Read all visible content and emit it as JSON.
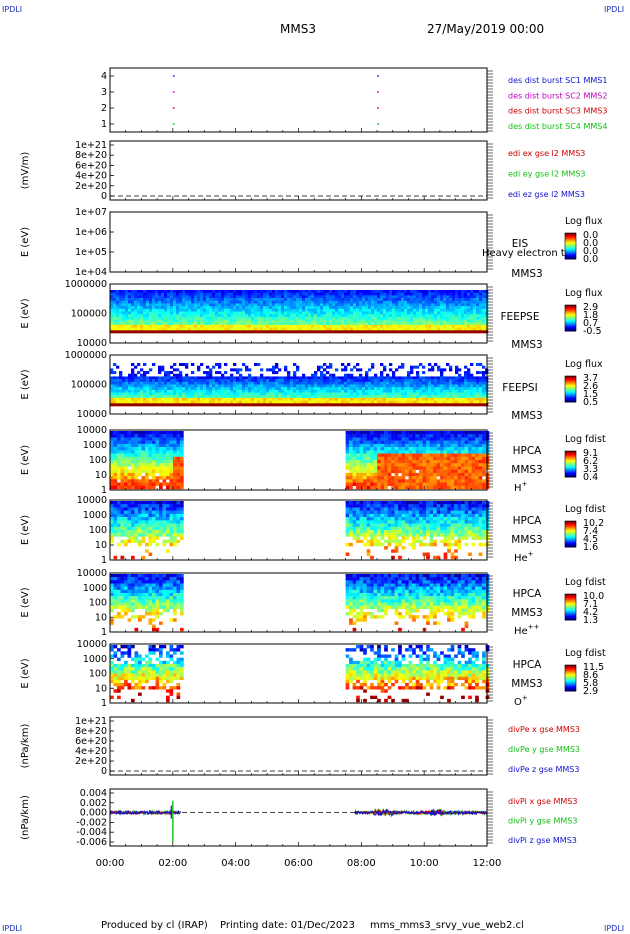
{
  "header": {
    "corner_tl": "IPDLI",
    "corner_tr": "IPDLI",
    "corner_bl": "IPDLI",
    "corner_br": "IPDLI",
    "mission": "MMS3",
    "date": "27/May/2019 00:00"
  },
  "footer": {
    "produced_by": "Produced by cl (IRAP)",
    "printing_date": "Printing date: 01/Dec/2023",
    "filename": "mms_mms3_srvy_vue_web2.cl"
  },
  "chart_data": {
    "type": "multi-panel time series / spectrogram",
    "x_range": [
      "00:00",
      "12:00"
    ],
    "x_ticks": [
      "00:00",
      "02:00",
      "04:00",
      "06:00",
      "08:00",
      "10:00",
      "12:00"
    ],
    "panels": [
      {
        "id": "burst",
        "type": "scatter",
        "ylabel": "",
        "yticks": [
          "4",
          "3",
          "2",
          "1"
        ],
        "legend": [
          {
            "label": "des dist burst SC1 MMS1",
            "color": "#1010d0"
          },
          {
            "label": "des dist burst SC2 MMS2",
            "color": "#c000c0"
          },
          {
            "label": "des dist burst SC3 MMS3",
            "color": "#d00000"
          },
          {
            "label": "des dist burst SC4 MMS4",
            "color": "#10c010"
          }
        ],
        "marks_hours": [
          2.0,
          8.5
        ]
      },
      {
        "id": "edi",
        "type": "line",
        "ylabel": "(mV/m)",
        "yticks": [
          "1e+21",
          "8e+20",
          "6e+20",
          "4e+20",
          "2e+20",
          "0"
        ],
        "legend": [
          {
            "label": "edi ex gse l2 MMS3",
            "color": "#d00000"
          },
          {
            "label": "edi ey gse l2 MMS3",
            "color": "#10c010"
          },
          {
            "label": "edi ez gse l2 MMS3",
            "color": "#1010d0"
          }
        ]
      },
      {
        "id": "eis",
        "type": "heatmap",
        "ylabel": "E (eV)",
        "yticks": [
          "1e+07",
          "1e+06",
          "1e+05",
          "1e+04"
        ],
        "labels": [
          "EIS",
          "MMS3"
        ],
        "overlay_text": "Heavy electron tof",
        "colorbar_title": "Log flux",
        "colorbar_ticks": [
          "0.0",
          "0.0",
          "0.0",
          "0.0"
        ]
      },
      {
        "id": "feepse",
        "type": "heatmap",
        "ylabel": "E (eV)",
        "yticks": [
          "1000000",
          "100000",
          "10000"
        ],
        "labels": [
          "FEEPSE",
          "MMS3"
        ],
        "colorbar_title": "Log flux",
        "colorbar_ticks": [
          "2.9",
          "1.8",
          "0.7",
          "-0.5"
        ]
      },
      {
        "id": "feepsi",
        "type": "heatmap",
        "ylabel": "E (eV)",
        "yticks": [
          "1000000",
          "100000",
          "10000"
        ],
        "labels": [
          "FEEPSI",
          "MMS3"
        ],
        "colorbar_title": "Log flux",
        "colorbar_ticks": [
          "3.7",
          "2.6",
          "1.5",
          "0.5"
        ]
      },
      {
        "id": "hpca_h",
        "type": "heatmap",
        "ylabel": "E (eV)",
        "yticks": [
          "10000",
          "1000",
          "100",
          "10",
          "1"
        ],
        "labels": [
          "HPCA",
          "MMS3"
        ],
        "species": "H",
        "species_sup": "+",
        "colorbar_title": "Log fdist",
        "colorbar_ticks": [
          "9.1",
          "6.2",
          "3.3",
          "0.4"
        ],
        "data_gaps_hours": [
          [
            2.25,
            7.5
          ]
        ]
      },
      {
        "id": "hpca_he1",
        "type": "heatmap",
        "ylabel": "E (eV)",
        "yticks": [
          "10000",
          "1000",
          "100",
          "10",
          "1"
        ],
        "labels": [
          "HPCA",
          "MMS3"
        ],
        "species": "He",
        "species_sup": "+",
        "colorbar_title": "Log fdist",
        "colorbar_ticks": [
          "10.2",
          "7.4",
          "4.5",
          "1.6"
        ],
        "data_gaps_hours": [
          [
            2.25,
            7.5
          ]
        ]
      },
      {
        "id": "hpca_he2",
        "type": "heatmap",
        "ylabel": "E (eV)",
        "yticks": [
          "10000",
          "1000",
          "100",
          "10",
          "1"
        ],
        "labels": [
          "HPCA",
          "MMS3"
        ],
        "species": "He",
        "species_sup": "++",
        "colorbar_title": "Log fdist",
        "colorbar_ticks": [
          "10.0",
          "7.1",
          "4.2",
          "1.3"
        ],
        "data_gaps_hours": [
          [
            2.25,
            7.5
          ]
        ]
      },
      {
        "id": "hpca_o",
        "type": "heatmap",
        "ylabel": "E (eV)",
        "yticks": [
          "10000",
          "1000",
          "100",
          "10",
          "1"
        ],
        "labels": [
          "HPCA",
          "MMS3"
        ],
        "species": "O",
        "species_sup": "+",
        "colorbar_title": "Log fdist",
        "colorbar_ticks": [
          "11.5",
          "8.6",
          "5.8",
          "2.9"
        ],
        "data_gaps_hours": [
          [
            2.25,
            7.5
          ]
        ]
      },
      {
        "id": "divpe",
        "type": "line",
        "ylabel": "(nPa/km)",
        "yticks": [
          "1e+21",
          "8e+20",
          "6e+20",
          "4e+20",
          "2e+20",
          "0"
        ],
        "legend": [
          {
            "label": "divPe x gse MMS3",
            "color": "#d00000"
          },
          {
            "label": "divPe y gse MMS3",
            "color": "#10c010"
          },
          {
            "label": "divPe z gse MMS3",
            "color": "#1010d0"
          }
        ]
      },
      {
        "id": "divpi",
        "type": "line",
        "ylabel": "(nPa/km)",
        "yticks": [
          "0.004",
          "0.002",
          "0.000",
          "-0.002",
          "-0.004",
          "-0.006"
        ],
        "legend": [
          {
            "label": "divPi x gse MMS3",
            "color": "#d00000"
          },
          {
            "label": "divPi y gse MMS3",
            "color": "#10c010"
          },
          {
            "label": "divPi z gse MMS3",
            "color": "#1010d0"
          }
        ]
      }
    ]
  }
}
